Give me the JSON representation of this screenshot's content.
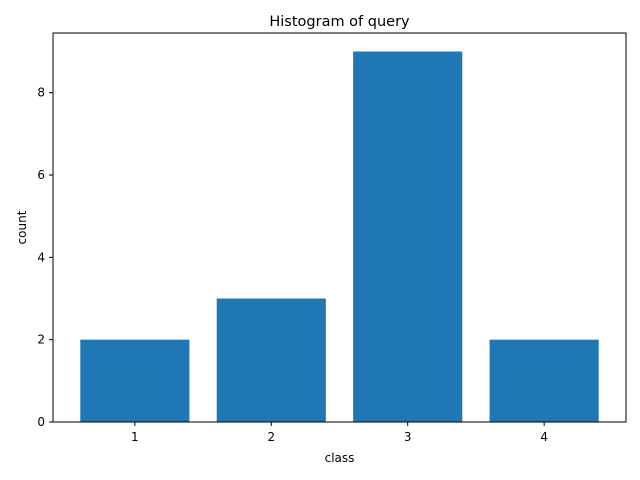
{
  "chart_data": {
    "type": "bar",
    "title": "Histogram of query",
    "xlabel": "class",
    "ylabel": "count",
    "categories": [
      "1",
      "2",
      "3",
      "4"
    ],
    "values": [
      2,
      3,
      9,
      2
    ],
    "ylim": [
      0,
      9.45
    ],
    "yticks": [
      0,
      2,
      4,
      6,
      8
    ],
    "bar_color": "#1f77b4",
    "grid": false,
    "legend": "none"
  }
}
